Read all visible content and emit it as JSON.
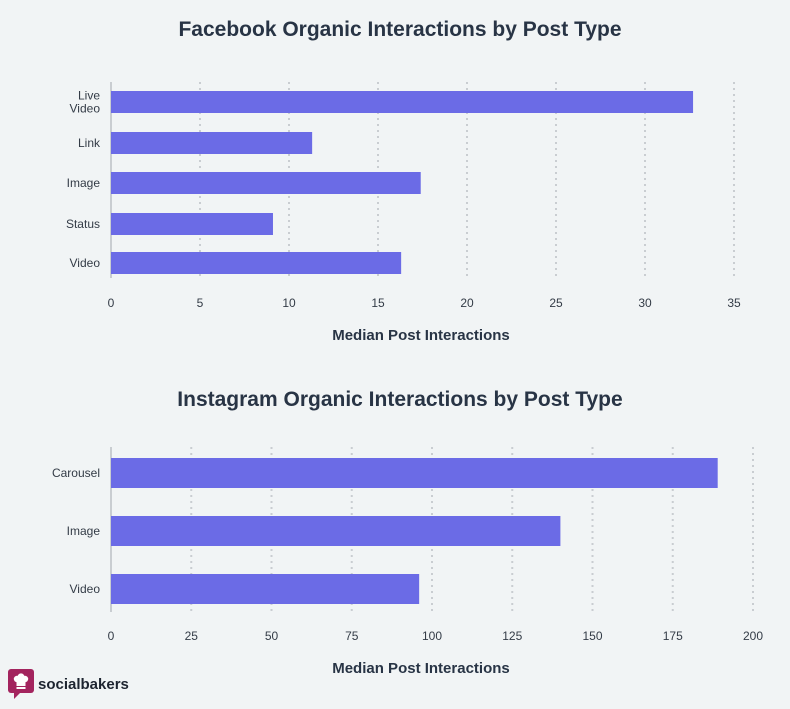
{
  "brand": {
    "name": "socialbakers",
    "logo_icon": "chef-hat-logo-icon",
    "logo_color": "#a3245e"
  },
  "colors": {
    "bar": "#6b6be6",
    "text": "#283445",
    "grid": "#c9cdd1",
    "background": "#f1f4f5"
  },
  "chart_data": [
    {
      "type": "bar",
      "orientation": "horizontal",
      "title": "Facebook Organic Interactions by Post Type",
      "xlabel": "Median Post Interactions",
      "ylabel": "",
      "categories": [
        [
          "Live",
          "Video"
        ],
        [
          "Link"
        ],
        [
          "Image"
        ],
        [
          "Status"
        ],
        [
          "Video"
        ]
      ],
      "values": [
        32.7,
        11.3,
        17.4,
        9.1,
        16.3
      ],
      "xlim": [
        0,
        35
      ],
      "ticks": [
        0,
        5,
        10,
        15,
        20,
        25,
        30,
        35
      ],
      "grid": true
    },
    {
      "type": "bar",
      "orientation": "horizontal",
      "title": "Instagram Organic Interactions by Post Type",
      "xlabel": "Median Post Interactions",
      "ylabel": "",
      "categories": [
        [
          "Carousel"
        ],
        [
          "Image"
        ],
        [
          "Video"
        ]
      ],
      "values": [
        189,
        140,
        96
      ],
      "xlim": [
        0,
        200
      ],
      "ticks": [
        0,
        25,
        50,
        75,
        100,
        125,
        150,
        175,
        200
      ],
      "grid": true
    }
  ]
}
